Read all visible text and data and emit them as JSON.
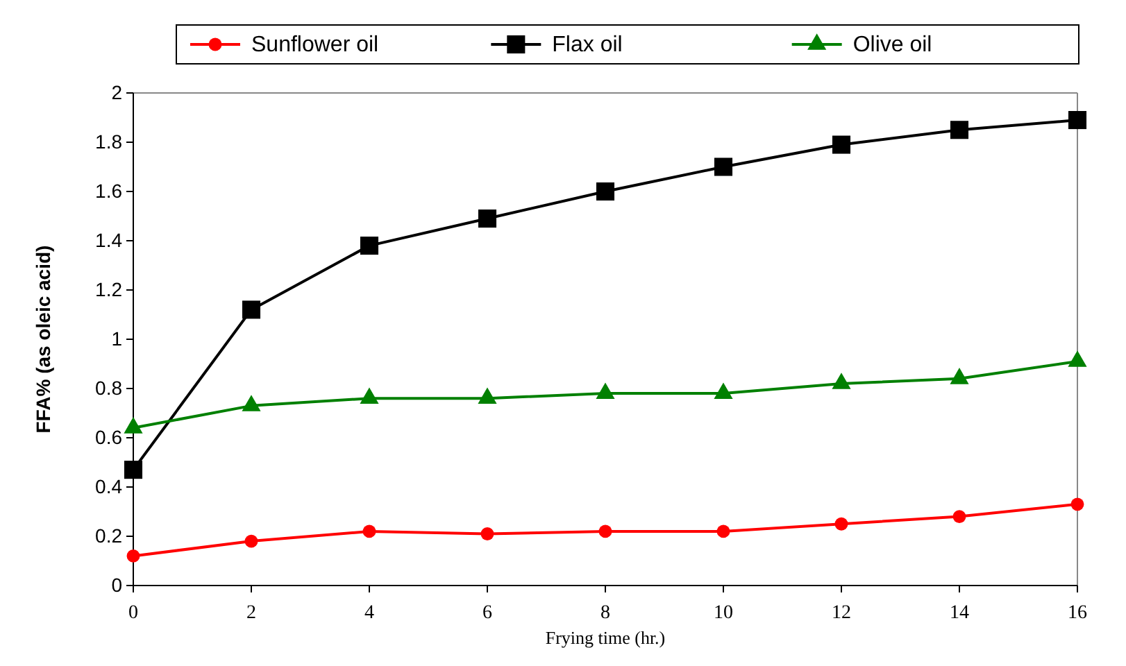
{
  "chart_data": {
    "type": "line",
    "xlabel": "Frying time (hr.)",
    "ylabel": "FFA% (as oleic acid)",
    "x": [
      0,
      2,
      4,
      6,
      8,
      10,
      12,
      14,
      16
    ],
    "xlim": [
      0,
      16
    ],
    "xticks": [
      0,
      2,
      4,
      6,
      8,
      10,
      12,
      14,
      16
    ],
    "ylim": [
      0,
      2
    ],
    "yticks": [
      0,
      0.2,
      0.4,
      0.6,
      0.8,
      1,
      1.2,
      1.4,
      1.6,
      1.8,
      2
    ],
    "grid": false,
    "legend": "top",
    "series": [
      {
        "name": "Sunflower oil",
        "color": "#ff0000",
        "marker": "circle",
        "values": [
          0.12,
          0.18,
          0.22,
          0.21,
          0.22,
          0.22,
          0.25,
          0.28,
          0.33
        ]
      },
      {
        "name": "Flax oil",
        "color": "#000000",
        "marker": "square",
        "values": [
          0.47,
          1.12,
          1.38,
          1.49,
          1.6,
          1.7,
          1.79,
          1.85,
          1.89
        ]
      },
      {
        "name": "Olive oil",
        "color": "#008000",
        "marker": "triangle",
        "values": [
          0.64,
          0.73,
          0.76,
          0.76,
          0.78,
          0.78,
          0.82,
          0.84,
          0.91
        ]
      }
    ]
  }
}
